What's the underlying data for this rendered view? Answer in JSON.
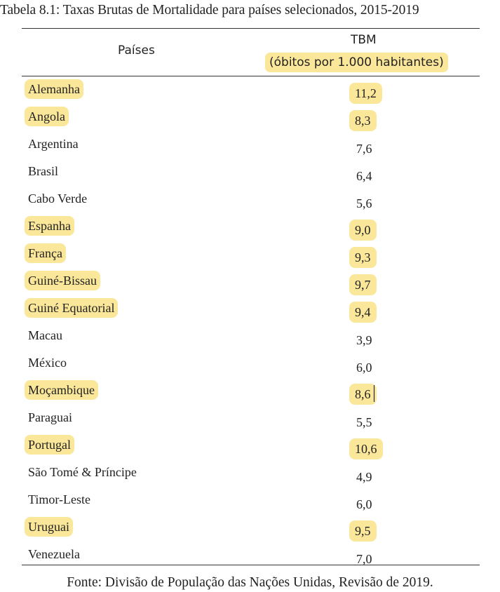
{
  "caption": "Tabela 8.1: Taxas Brutas de Mortalidade para países selecionados, 2015-2019",
  "header": {
    "countries": "Países",
    "tbm": "TBM",
    "unit": "(óbitos por 1.000 habitantes)"
  },
  "highlight_color": "#fbe79a",
  "rows": [
    {
      "country": "Alemanha",
      "value": "11,2",
      "highlighted": true
    },
    {
      "country": "Angola",
      "value": "8,3",
      "highlighted": true
    },
    {
      "country": "Argentina",
      "value": "7,6",
      "highlighted": false
    },
    {
      "country": "Brasil",
      "value": "6,4",
      "highlighted": false
    },
    {
      "country": "Cabo Verde",
      "value": "5,6",
      "highlighted": false
    },
    {
      "country": "Espanha",
      "value": "9,0",
      "highlighted": true
    },
    {
      "country": "França",
      "value": "9,3",
      "highlighted": true
    },
    {
      "country": "Guiné-Bissau",
      "value": "9,7",
      "highlighted": true
    },
    {
      "country": "Guiné Equatorial",
      "value": "9,4",
      "highlighted": true
    },
    {
      "country": "Macau",
      "value": "3,9",
      "highlighted": false
    },
    {
      "country": "México",
      "value": "6,0",
      "highlighted": false
    },
    {
      "country": "Moçambique",
      "value": "8,6",
      "highlighted": true
    },
    {
      "country": "Paraguai",
      "value": "5,5",
      "highlighted": false
    },
    {
      "country": "Portugal",
      "value": "10,6",
      "highlighted": true
    },
    {
      "country": "São Tomé & Príncipe",
      "value": "4,9",
      "highlighted": false
    },
    {
      "country": "Timor-Leste",
      "value": "6,0",
      "highlighted": false
    },
    {
      "country": "Uruguai",
      "value": "9,5",
      "highlighted": true
    },
    {
      "country": "Venezuela",
      "value": "7,0",
      "highlighted": false
    }
  ],
  "source": "Fonte: Divisão de População das Nações Unidas, Revisão de 2019."
}
